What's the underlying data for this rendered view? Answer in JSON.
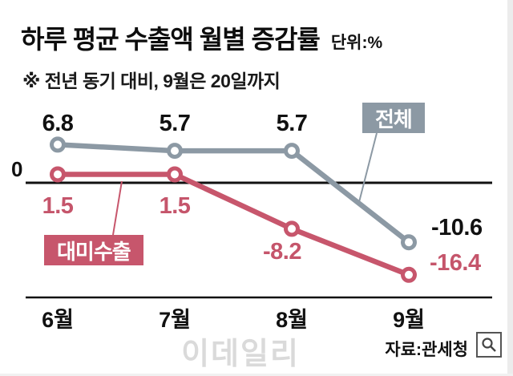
{
  "header": {
    "title": "하루 평균 수출액 월별 증감률",
    "unit_label": "단위:%",
    "subtitle": "※ 전년 동기 대비, 9월은 20일까지"
  },
  "chart_data": {
    "type": "line",
    "categories": [
      "6월",
      "7월",
      "8월",
      "9월"
    ],
    "series": [
      {
        "name": "전체",
        "color": "#8c99a4",
        "values": [
          6.8,
          5.7,
          5.7,
          -10.6
        ],
        "labels": [
          "6.8",
          "5.7",
          "5.7",
          "-10.6"
        ]
      },
      {
        "name": "대미수출",
        "color": "#c7566c",
        "values": [
          1.5,
          1.5,
          -8.2,
          -16.4
        ],
        "labels": [
          "1.5",
          "1.5",
          "-8.2",
          "-16.4"
        ]
      }
    ],
    "zero_label": "0",
    "ylim": [
      -18,
      8
    ],
    "grid": false,
    "legend_style": "inline-badges"
  },
  "footer": {
    "watermark": "이데일리",
    "source": "자료:관세청"
  }
}
